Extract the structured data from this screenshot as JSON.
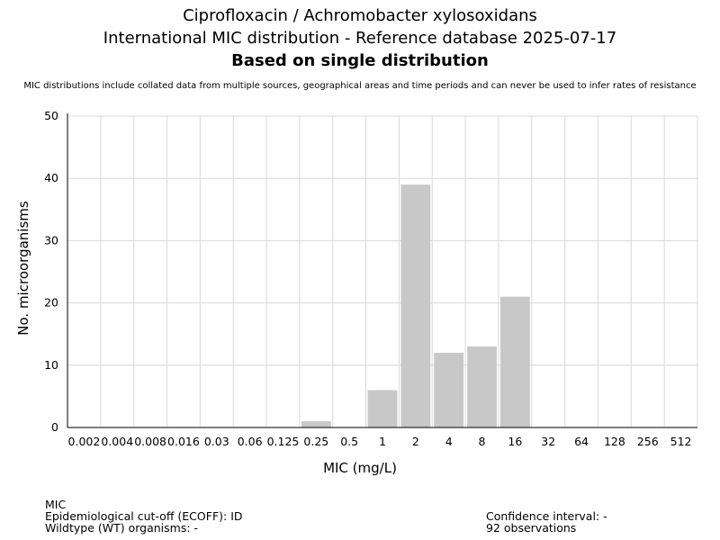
{
  "header": {
    "title_line1": "Ciprofloxacin / Achromobacter xylosoxidans",
    "title_line2": "International MIC distribution - Reference database 2025-07-17",
    "title_line3": "Based on single distribution",
    "disclaimer": "MIC distributions include collated data from multiple sources, geographical areas and time periods and can never be used to infer rates of resistance"
  },
  "chart_data": {
    "type": "bar",
    "categories": [
      "0.002",
      "0.004",
      "0.008",
      "0.016",
      "0.03",
      "0.06",
      "0.125",
      "0.25",
      "0.5",
      "1",
      "2",
      "4",
      "8",
      "16",
      "32",
      "64",
      "128",
      "256",
      "512"
    ],
    "values": [
      0,
      0,
      0,
      0,
      0,
      0,
      0,
      1,
      0,
      6,
      39,
      12,
      13,
      21,
      0,
      0,
      0,
      0,
      0
    ],
    "xlabel": "MIC (mg/L)",
    "ylabel": "No. microorganisms",
    "ylim": [
      0,
      50
    ],
    "yticks": [
      0,
      10,
      20,
      30,
      40,
      50
    ],
    "grid": true,
    "bar_color": "#c8c8c8",
    "grid_color": "#d9d9d9"
  },
  "footer": {
    "left_line1": "MIC",
    "left_line2": "Epidemiological cut-off (ECOFF): ID",
    "left_line3": "Wildtype (WT) organisms:  -",
    "right_line1": "Confidence interval: -",
    "right_line2": "92 observations"
  }
}
